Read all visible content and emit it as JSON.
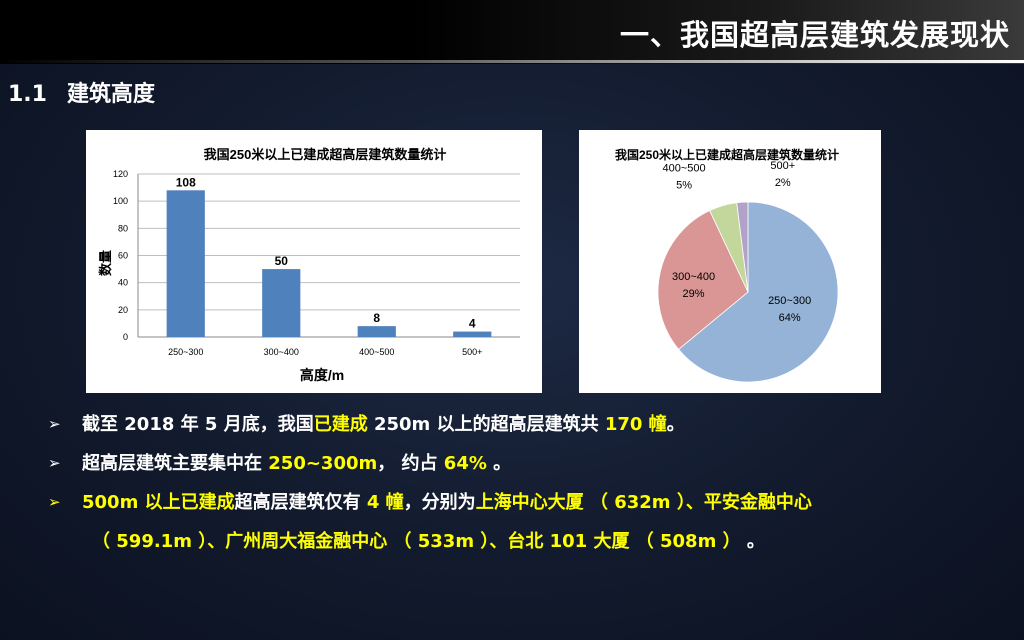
{
  "header": {
    "title": "一、我国超高层建筑发展现状"
  },
  "section": {
    "number": "1.1",
    "title": "建筑高度"
  },
  "bullets": {
    "marker": "➢",
    "b1": {
      "p1": "截至 2018 年 5 月底，我国",
      "h1": "已建成",
      "p2": " 250m 以上的超高层建筑共 ",
      "h2": "170 幢",
      "p3": "。"
    },
    "b2": {
      "p1": "超高层建筑主要集中在 ",
      "h1": "250~300m",
      "p2": "， 约占 ",
      "h2": "64%",
      "p3": " 。"
    },
    "b3": {
      "h1": "500m 以上已建成",
      "p1": "超高层建筑仅有 ",
      "h2": "4 幢",
      "p2": "，分别为",
      "h3": "上海中心大厦 （ 632m ）、平安金融中心",
      "h4": "（ 599.1m ）、广州周大福金融中心 （ 533m ）、台北 101 大厦 （ 508m ）",
      "p3": " 。"
    }
  },
  "chart_data": [
    {
      "type": "bar",
      "title": "我国250米以上已建成超高层建筑数量统计",
      "categories": [
        "250~300",
        "300~400",
        "400~500",
        "500+"
      ],
      "values": [
        108,
        50,
        8,
        4
      ],
      "xlabel": "高度/m",
      "ylabel": "数量",
      "ylim": [
        0,
        120
      ],
      "yticks": [
        0,
        20,
        40,
        60,
        80,
        100,
        120
      ],
      "grid": true,
      "bar_color": "#4f81bd"
    },
    {
      "type": "pie",
      "title": "我国250米以上已建成超高层建筑数量统计",
      "slices": [
        {
          "label": "250~300",
          "pct": "64%",
          "value": 64,
          "color": "#95b3d7"
        },
        {
          "label": "300~400",
          "pct": "29%",
          "value": 29,
          "color": "#d99694"
        },
        {
          "label": "400~500",
          "pct": "5%",
          "value": 5,
          "color": "#c3d69b"
        },
        {
          "label": "500+",
          "pct": "2%",
          "value": 2,
          "color": "#b3a2c7"
        }
      ]
    }
  ]
}
